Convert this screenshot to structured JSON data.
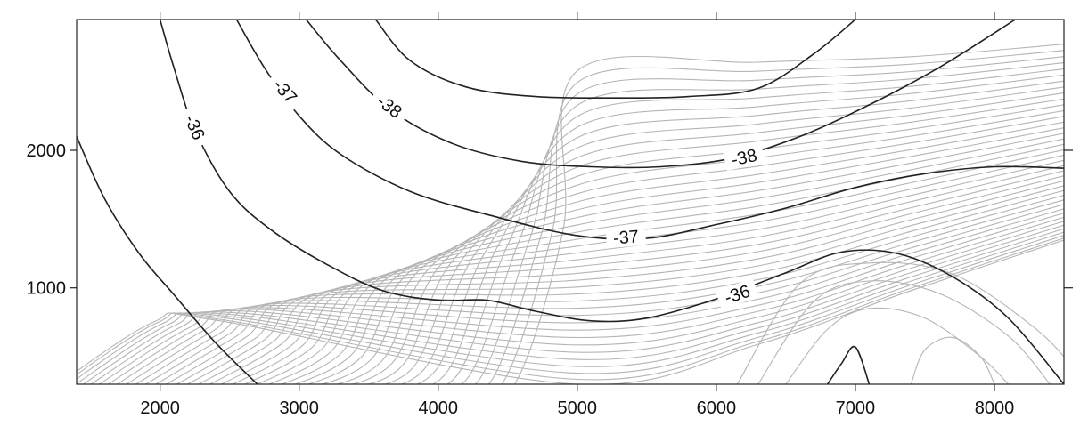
{
  "chart_data": {
    "type": "contour",
    "title": "",
    "xlabel": "",
    "ylabel": "",
    "xlim": [
      1400,
      8500
    ],
    "ylim": [
      300,
      2950
    ],
    "x_ticks": [
      2000,
      3000,
      4000,
      5000,
      6000,
      7000,
      8000
    ],
    "y_ticks": [
      1000,
      2000
    ],
    "grid": false,
    "major_contour_color": "#222222",
    "minor_contour_color": "#b5b5b5",
    "major_contours": [
      {
        "level": -36,
        "label": "-36",
        "segments": [
          [
            [
              1400,
              2100
            ],
            [
              1600,
              1650
            ],
            [
              1850,
              1250
            ],
            [
              2100,
              950
            ],
            [
              2400,
              600
            ],
            [
              2700,
              300
            ]
          ],
          [
            [
              2000,
              2950
            ],
            [
              2100,
              2600
            ],
            [
              2250,
              2150
            ],
            [
              2500,
              1700
            ],
            [
              2800,
              1420
            ],
            [
              3200,
              1170
            ],
            [
              3600,
              980
            ],
            [
              4000,
              910
            ],
            [
              4350,
              910
            ],
            [
              4700,
              830
            ],
            [
              5100,
              760
            ],
            [
              5500,
              780
            ],
            [
              6000,
              920
            ],
            [
              6500,
              1110
            ],
            [
              6900,
              1260
            ],
            [
              7300,
              1250
            ],
            [
              7700,
              1080
            ],
            [
              8100,
              780
            ],
            [
              8500,
              300
            ]
          ]
        ],
        "labels_at": [
          [
            2250,
            2170
          ],
          [
            6150,
            955
          ]
        ]
      },
      {
        "level": -37,
        "label": "-37",
        "segments": [
          [
            [
              2550,
              2950
            ],
            [
              2750,
              2600
            ],
            [
              3000,
              2250
            ],
            [
              3300,
              1970
            ],
            [
              3800,
              1700
            ],
            [
              4400,
              1520
            ],
            [
              5000,
              1380
            ],
            [
              5500,
              1360
            ],
            [
              6000,
              1460
            ],
            [
              6500,
              1580
            ],
            [
              7000,
              1730
            ],
            [
              7500,
              1830
            ],
            [
              8000,
              1880
            ],
            [
              8500,
              1870
            ]
          ]
        ],
        "labels_at": [
          [
            2900,
            2430
          ],
          [
            5350,
            1370
          ]
        ]
      },
      {
        "level": -38,
        "label": "-38",
        "segments": [
          [
            [
              3050,
              2950
            ],
            [
              3300,
              2650
            ],
            [
              3650,
              2300
            ],
            [
              4100,
              2050
            ],
            [
              4600,
              1920
            ],
            [
              5100,
              1880
            ],
            [
              5600,
              1880
            ],
            [
              6100,
              1940
            ],
            [
              6600,
              2100
            ],
            [
              7100,
              2330
            ],
            [
              7600,
              2600
            ],
            [
              8150,
              2950
            ]
          ]
        ],
        "labels_at": [
          [
            3650,
            2320
          ],
          [
            6200,
            1950
          ]
        ]
      },
      {
        "level": -38,
        "label": "",
        "segments": [
          [
            [
              3550,
              2950
            ],
            [
              3800,
              2650
            ],
            [
              4200,
              2460
            ],
            [
              4700,
              2390
            ],
            [
              5300,
              2380
            ],
            [
              5800,
              2390
            ],
            [
              6300,
              2450
            ],
            [
              6700,
              2700
            ],
            [
              7000,
              2950
            ]
          ]
        ],
        "labels_at": []
      },
      {
        "level": -36,
        "label": "",
        "segments": [
          [
            [
              6800,
              300
            ],
            [
              6900,
              450
            ],
            [
              7000,
              570
            ],
            [
              7100,
              300
            ]
          ]
        ],
        "labels_at": []
      }
    ],
    "minor_contour_count": 40
  }
}
